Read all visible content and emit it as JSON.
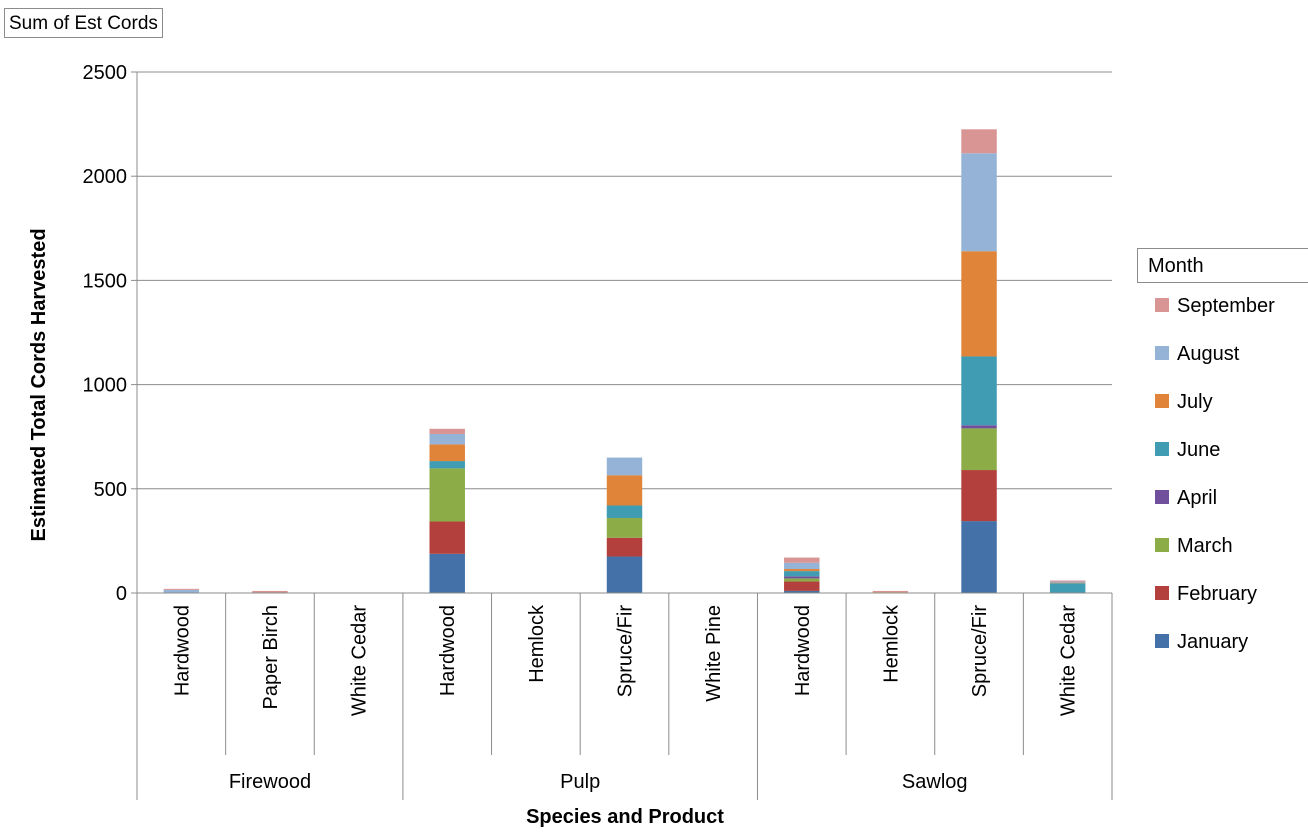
{
  "field_button": "Sum of Est Cords",
  "legend_title": "Month",
  "colors": {
    "September": "#d99594",
    "August": "#95b3d7",
    "July": "#e0843a",
    "June": "#3f9cb2",
    "April": "#70509c",
    "March": "#8bac47",
    "February": "#b4403e",
    "January": "#4472a8",
    "axis": "#8c8c8c",
    "grid": "#8c8c8c"
  },
  "chart_data": {
    "type": "bar",
    "stacked": true,
    "title": "",
    "xlabel": "Species and Product",
    "ylabel": "Estimated Total Cords Harvested",
    "ylim": [
      0,
      2500
    ],
    "yticks": [
      0,
      500,
      1000,
      1500,
      2000,
      2500
    ],
    "grid": true,
    "legend_position": "right",
    "groups": [
      {
        "name": "Firewood",
        "categories": [
          "Hardwood",
          "Paper Birch",
          "White Cedar"
        ]
      },
      {
        "name": "Pulp",
        "categories": [
          "Hardwood",
          "Hemlock",
          "Spruce/Fir",
          "White Pine"
        ]
      },
      {
        "name": "Sawlog",
        "categories": [
          "Hardwood",
          "Hemlock",
          "Spruce/Fir",
          "White Cedar"
        ]
      }
    ],
    "categories": [
      "Hardwood",
      "Paper Birch",
      "White Cedar",
      "Hardwood",
      "Hemlock",
      "Spruce/Fir",
      "White Pine",
      "Hardwood",
      "Hemlock",
      "Spruce/Fir",
      "White Cedar"
    ],
    "series": [
      {
        "name": "January",
        "values": [
          0,
          0,
          0,
          188,
          0,
          175,
          0,
          10,
          0,
          345,
          2
        ]
      },
      {
        "name": "February",
        "values": [
          0,
          0,
          0,
          155,
          0,
          90,
          0,
          45,
          0,
          245,
          0
        ]
      },
      {
        "name": "March",
        "values": [
          0,
          0,
          0,
          255,
          0,
          95,
          0,
          15,
          0,
          200,
          0
        ]
      },
      {
        "name": "April",
        "values": [
          0,
          0,
          0,
          0,
          0,
          0,
          0,
          10,
          0,
          15,
          0
        ]
      },
      {
        "name": "June",
        "values": [
          0,
          0,
          0,
          35,
          0,
          60,
          0,
          25,
          0,
          330,
          45
        ]
      },
      {
        "name": "July",
        "values": [
          0,
          0,
          0,
          80,
          0,
          145,
          0,
          10,
          4,
          505,
          3
        ]
      },
      {
        "name": "August",
        "values": [
          15,
          0,
          0,
          50,
          0,
          85,
          0,
          30,
          0,
          470,
          5
        ]
      },
      {
        "name": "September",
        "values": [
          5,
          10,
          2,
          25,
          0,
          0,
          0,
          25,
          6,
          115,
          5
        ]
      }
    ],
    "legend_order": [
      "September",
      "August",
      "July",
      "June",
      "April",
      "March",
      "February",
      "January"
    ]
  }
}
